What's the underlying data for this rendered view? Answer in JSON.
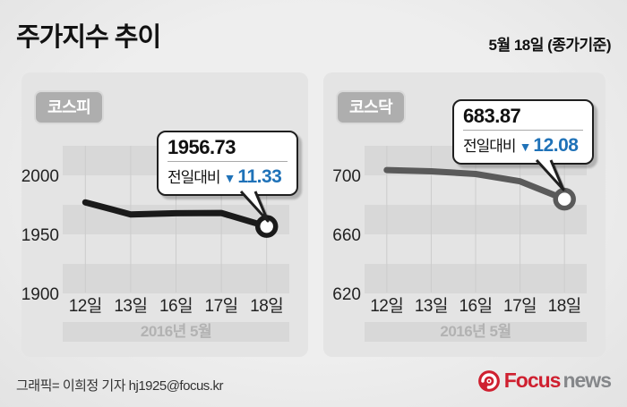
{
  "header": {
    "title": "주가지수 추이",
    "date_note": "5월 18일 (종가기준)"
  },
  "colors": {
    "page_bg": "#eeeeee",
    "panel_bg": "#e4e4e4",
    "band": "#d8d8d8",
    "grid": "#cccccc",
    "axis_text": "#222222",
    "month_text": "#b2b2b2",
    "badge_bg": "#aeaeae",
    "badge_text": "#ffffff",
    "callout_border": "#1f1f1f",
    "blue": "#1f72b8",
    "kospi_line": "#1a1a1a",
    "kosdaq_line": "#5a5a5a",
    "focus_red": "#cf2030",
    "news_gray": "#85878a"
  },
  "chart_data": [
    {
      "type": "line",
      "title": "코스피",
      "categories": [
        "12일",
        "13일",
        "16일",
        "17일",
        "18일"
      ],
      "values": [
        1977.1,
        1966.9,
        1967.9,
        1968.1,
        1956.73
      ],
      "y_ticks": [
        2000,
        1950,
        1900
      ],
      "ylim": [
        1890,
        2025
      ],
      "x_axis_note": "2016년 5월",
      "grid": "horizontal-bands",
      "legend": "none",
      "line_color": "#1a1a1a",
      "callout": {
        "value": "1956.73",
        "label": "전일대비",
        "arrow_icon": "▼",
        "delta": "11.33",
        "direction": "down"
      }
    },
    {
      "type": "line",
      "title": "코스닥",
      "categories": [
        "12일",
        "13일",
        "16일",
        "17일",
        "18일"
      ],
      "values": [
        703.6,
        702.7,
        700.9,
        695.95,
        683.87
      ],
      "y_ticks": [
        700,
        660,
        620
      ],
      "ylim": [
        612,
        720
      ],
      "x_axis_note": "2016년 5월",
      "grid": "horizontal-bands",
      "legend": "none",
      "line_color": "#5a5a5a",
      "callout": {
        "value": "683.87",
        "label": "전일대비",
        "arrow_icon": "▼",
        "delta": "12.08",
        "direction": "down"
      }
    }
  ],
  "footer": {
    "credit": "그래픽= 이희정 기자 hj1925@focus.kr",
    "logo": {
      "focus": "Focus",
      "news": "news"
    }
  }
}
